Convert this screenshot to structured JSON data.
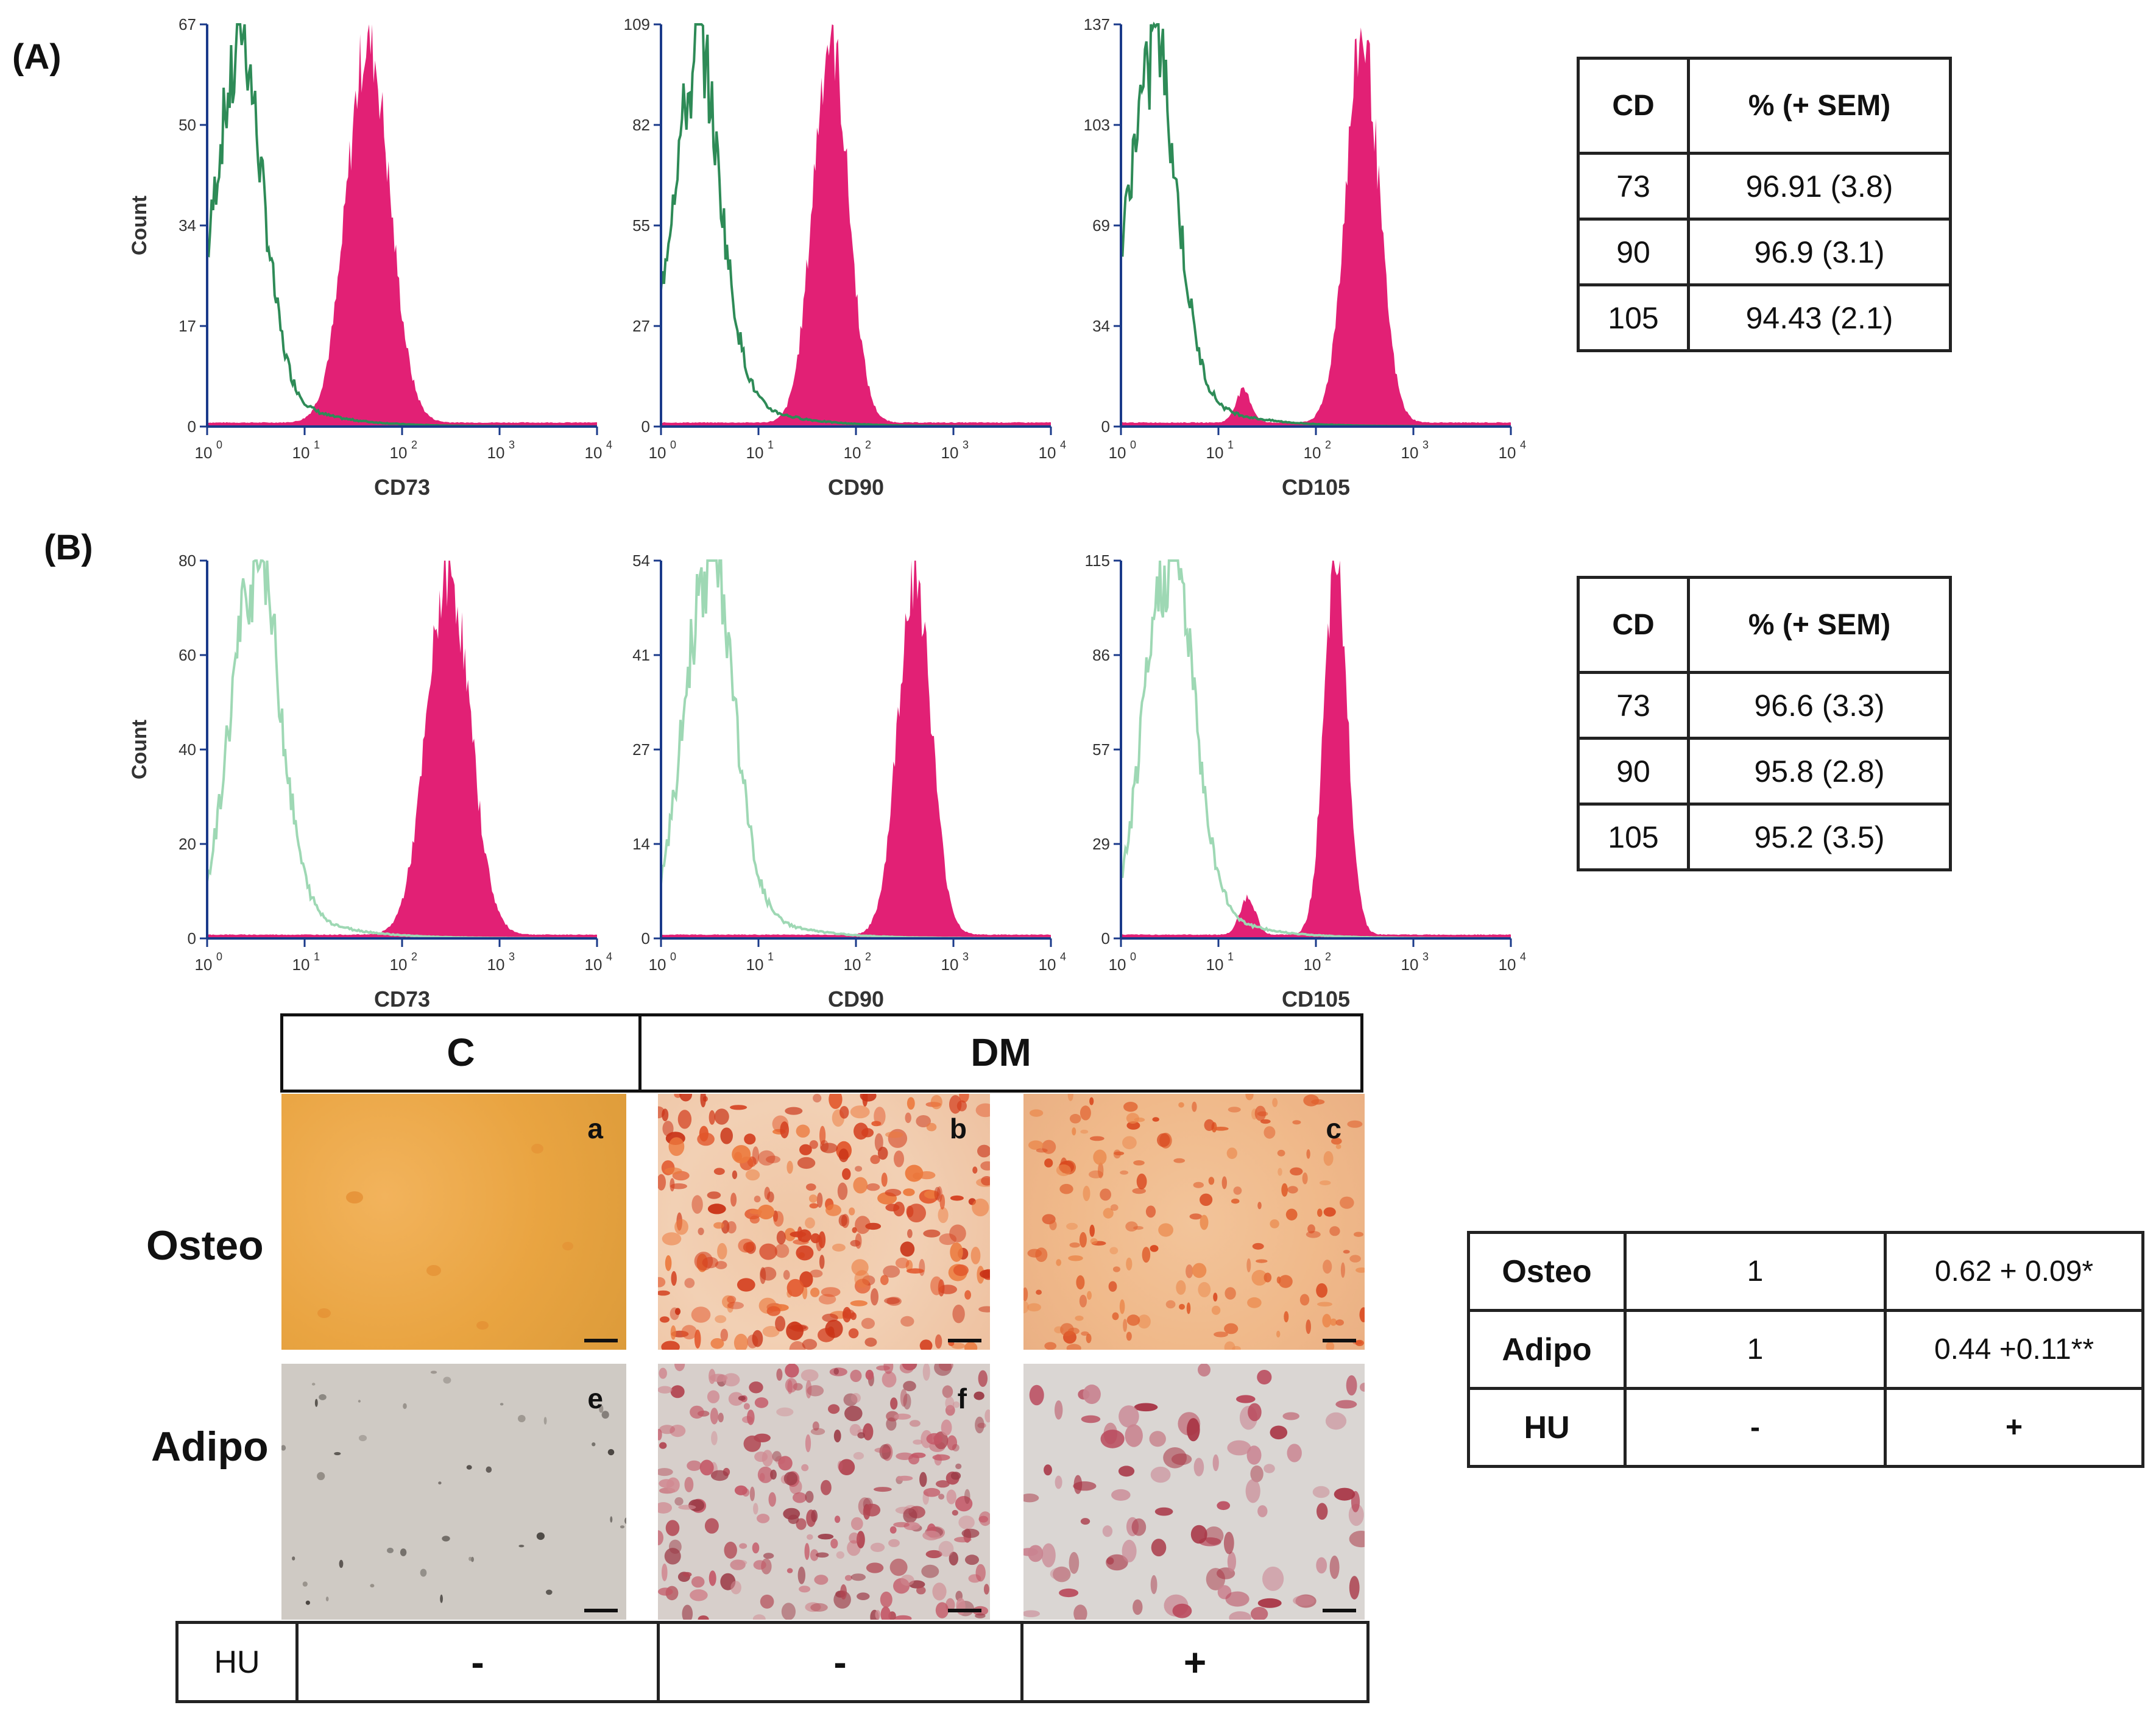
{
  "panels": {
    "a_label": "(A)",
    "b_label": "(B)"
  },
  "axis": {
    "ylabel": "Count",
    "xticks": [
      {
        "base": "10",
        "exp": "0"
      },
      {
        "base": "10",
        "exp": "1"
      },
      {
        "base": "10",
        "exp": "2"
      },
      {
        "base": "10",
        "exp": "3"
      },
      {
        "base": "10",
        "exp": "4"
      }
    ]
  },
  "chart_data": [
    {
      "type": "histogram",
      "panel": "A",
      "xlabel": "CD73",
      "xscale": "log",
      "xlim": [
        1,
        10000
      ],
      "yticks": [
        "0",
        "17",
        "34",
        "50",
        "67"
      ],
      "isotype_peak": 2,
      "isotype_height": 0.87,
      "isotype_width": 0.25,
      "stain_peak": 45,
      "stain_height": 0.95,
      "stain_width": 0.22,
      "stain_bump": null,
      "colors": {
        "isotype": "#2e8b57",
        "stain": "#e0146e"
      }
    },
    {
      "type": "histogram",
      "panel": "A",
      "xlabel": "CD90",
      "xscale": "log",
      "xlim": [
        1,
        10000
      ],
      "yticks": [
        "0",
        "27",
        "55",
        "82",
        "109"
      ],
      "isotype_peak": 2.2,
      "isotype_height": 0.85,
      "isotype_width": 0.25,
      "stain_peak": 55,
      "stain_height": 0.96,
      "stain_width": 0.18,
      "stain_bump": null,
      "colors": {
        "isotype": "#2e8b57",
        "stain": "#e0146e"
      }
    },
    {
      "type": "histogram",
      "panel": "A",
      "xlabel": "CD105",
      "xscale": "log",
      "xlim": [
        1,
        10000
      ],
      "yticks": [
        "0",
        "34",
        "69",
        "103",
        "137"
      ],
      "isotype_peak": 2,
      "isotype_height": 0.87,
      "isotype_width": 0.25,
      "stain_peak": 300,
      "stain_height": 0.96,
      "stain_width": 0.17,
      "stain_bump": {
        "peak": 18,
        "height": 0.08
      },
      "colors": {
        "isotype": "#2e8b57",
        "stain": "#e0146e"
      }
    },
    {
      "type": "histogram",
      "panel": "B",
      "xlabel": "CD73",
      "xscale": "log",
      "xlim": [
        1,
        10000
      ],
      "yticks": [
        "0",
        "20",
        "40",
        "60",
        "80"
      ],
      "isotype_peak": 3,
      "isotype_height": 0.95,
      "isotype_width": 0.25,
      "stain_peak": 300,
      "stain_height": 0.96,
      "stain_width": 0.22,
      "stain_bump": null,
      "colors": {
        "isotype": "#9ed8b4",
        "stain": "#e0146e"
      }
    },
    {
      "type": "histogram",
      "panel": "B",
      "xlabel": "CD90",
      "xscale": "log",
      "xlim": [
        1,
        10000
      ],
      "yticks": [
        "0",
        "14",
        "27",
        "41",
        "54"
      ],
      "isotype_peak": 3,
      "isotype_height": 0.96,
      "isotype_width": 0.25,
      "stain_peak": 400,
      "stain_height": 0.96,
      "stain_width": 0.17,
      "stain_bump": null,
      "colors": {
        "isotype": "#9ed8b4",
        "stain": "#e0146e"
      }
    },
    {
      "type": "histogram",
      "panel": "B",
      "xlabel": "CD105",
      "xscale": "log",
      "xlim": [
        1,
        10000
      ],
      "yticks": [
        "0",
        "29",
        "57",
        "86",
        "115"
      ],
      "isotype_peak": 3,
      "isotype_height": 0.97,
      "isotype_width": 0.25,
      "stain_peak": 160,
      "stain_height": 0.97,
      "stain_width": 0.12,
      "stain_bump": {
        "peak": 20,
        "height": 0.1
      },
      "colors": {
        "isotype": "#9ed8b4",
        "stain": "#e0146e"
      }
    }
  ],
  "table_a": {
    "header_cd": "CD",
    "header_pct": "% (+ SEM)",
    "rows": [
      {
        "cd": "73",
        "pct": "96.91 (3.8)"
      },
      {
        "cd": "90",
        "pct": "96.9 (3.1)"
      },
      {
        "cd": "105",
        "pct": "94.43 (2.1)"
      }
    ]
  },
  "table_b": {
    "header_cd": "CD",
    "header_pct": "% (+ SEM)",
    "rows": [
      {
        "cd": "73",
        "pct": "96.6 (3.3)"
      },
      {
        "cd": "90",
        "pct": "95.8 (2.8)"
      },
      {
        "cd": "105",
        "pct": "95.2 (3.5)"
      }
    ]
  },
  "micro": {
    "col_c": "C",
    "col_dm": "DM",
    "row_osteo": "Osteo",
    "row_adipo": "Adipo",
    "letters": [
      "a",
      "b",
      "c",
      "e",
      "f",
      ""
    ],
    "hu_label": "HU",
    "hu_values": [
      "-",
      "-",
      "+"
    ]
  },
  "diff_table": {
    "rows": [
      {
        "label": "Osteo",
        "c1": "1",
        "c2": "0.62 + 0.09*"
      },
      {
        "label": "Adipo",
        "c1": "1",
        "c2": "0.44 +0.11**"
      },
      {
        "label": "HU",
        "c1": "-",
        "c2": "+"
      }
    ]
  },
  "colors": {
    "stain": "#e0146e",
    "isotype_a": "#2e8b57",
    "isotype_b": "#9ed8b4",
    "axis": "#1a3a8a"
  }
}
